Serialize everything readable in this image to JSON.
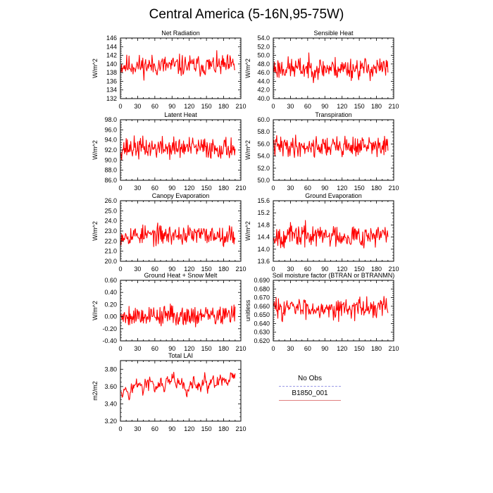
{
  "title": "Central America (5-16N,95-75W)",
  "legend": {
    "items": [
      {
        "label": "No Obs",
        "color": "#9a9ae6",
        "style": "dashed"
      },
      {
        "label": "B1850_001",
        "color": "#e08080",
        "style": "solid"
      }
    ]
  },
  "series_color": "#ff0000",
  "chart_data": [
    {
      "type": "line",
      "title": "Net Radiation",
      "ylabel": "W/m^2",
      "xlabel": "",
      "xlim": [
        0,
        210
      ],
      "xticks": [
        0,
        30,
        60,
        90,
        120,
        150,
        180,
        210
      ],
      "ylim": [
        132,
        146
      ],
      "yticks": [
        132,
        134,
        136,
        138,
        140,
        142,
        144,
        146
      ],
      "ydec": 0,
      "series": [
        {
          "name": "B1850_001",
          "mean": 139.6,
          "amp": 2.3,
          "seed": 11
        }
      ]
    },
    {
      "type": "line",
      "title": "Sensible Heat",
      "ylabel": "W/m^2",
      "xlabel": "",
      "xlim": [
        0,
        210
      ],
      "xticks": [
        0,
        30,
        60,
        90,
        120,
        150,
        180,
        210
      ],
      "ylim": [
        40,
        54
      ],
      "yticks": [
        40,
        42,
        44,
        46,
        48,
        50,
        52,
        54
      ],
      "ydec": 1,
      "series": [
        {
          "name": "B1850_001",
          "mean": 47.0,
          "amp": 2.4,
          "seed": 23
        }
      ]
    },
    {
      "type": "line",
      "title": "Latent Heat",
      "ylabel": "W/m^2",
      "xlabel": "",
      "xlim": [
        0,
        210
      ],
      "xticks": [
        0,
        30,
        60,
        90,
        120,
        150,
        180,
        210
      ],
      "ylim": [
        86,
        98
      ],
      "yticks": [
        86,
        88,
        90,
        92,
        94,
        96,
        98
      ],
      "ydec": 1,
      "series": [
        {
          "name": "B1850_001",
          "mean": 92.4,
          "amp": 2.0,
          "seed": 37
        }
      ]
    },
    {
      "type": "line",
      "title": "Transpiration",
      "ylabel": "W/m^2",
      "xlabel": "",
      "xlim": [
        0,
        210
      ],
      "xticks": [
        0,
        30,
        60,
        90,
        120,
        150,
        180,
        210
      ],
      "ylim": [
        50,
        60
      ],
      "yticks": [
        50,
        52,
        54,
        56,
        58,
        60
      ],
      "ydec": 1,
      "series": [
        {
          "name": "B1850_001",
          "mean": 55.6,
          "amp": 1.6,
          "seed": 41
        }
      ]
    },
    {
      "type": "line",
      "title": "Canopy Evaporation",
      "ylabel": "W/m^2",
      "xlabel": "",
      "xlim": [
        0,
        210
      ],
      "xticks": [
        0,
        30,
        60,
        90,
        120,
        150,
        180,
        210
      ],
      "ylim": [
        20,
        26
      ],
      "yticks": [
        20,
        21,
        22,
        23,
        24,
        25,
        26
      ],
      "ydec": 1,
      "series": [
        {
          "name": "B1850_001",
          "mean": 22.6,
          "amp": 0.9,
          "seed": 53
        }
      ]
    },
    {
      "type": "line",
      "title": "Ground Evaporation",
      "ylabel": "W/m^2",
      "xlabel": "",
      "xlim": [
        0,
        210
      ],
      "xticks": [
        0,
        30,
        60,
        90,
        120,
        150,
        180,
        210
      ],
      "ylim": [
        13.6,
        15.6
      ],
      "yticks": [
        13.6,
        14.0,
        14.4,
        14.8,
        15.2,
        15.6
      ],
      "ydec": 1,
      "series": [
        {
          "name": "B1850_001",
          "mean": 14.45,
          "amp": 0.35,
          "seed": 67
        }
      ]
    },
    {
      "type": "line",
      "title": "Ground Heat + Snow Melt",
      "ylabel": "W/m^2",
      "xlabel": "",
      "xlim": [
        0,
        210
      ],
      "xticks": [
        0,
        30,
        60,
        90,
        120,
        150,
        180,
        210
      ],
      "ylim": [
        -0.4,
        0.6
      ],
      "yticks": [
        -0.4,
        -0.2,
        0.0,
        0.2,
        0.4,
        0.6
      ],
      "ydec": 2,
      "series": [
        {
          "name": "B1850_001",
          "mean": 0.02,
          "amp": 0.16,
          "seed": 79
        }
      ]
    },
    {
      "type": "line",
      "title": "Soil moisture factor (BTRAN or BTRANMN)",
      "ylabel": "unitless",
      "xlabel": "",
      "xlim": [
        0,
        210
      ],
      "xticks": [
        0,
        30,
        60,
        90,
        120,
        150,
        180,
        210
      ],
      "ylim": [
        0.62,
        0.69
      ],
      "yticks": [
        0.62,
        0.63,
        0.64,
        0.65,
        0.66,
        0.67,
        0.68,
        0.69
      ],
      "ydec": 3,
      "series": [
        {
          "name": "B1850_001",
          "mean": 0.658,
          "amp": 0.011,
          "seed": 83
        }
      ]
    },
    {
      "type": "line",
      "title": "Total LAI",
      "ylabel": "m2/m2",
      "xlabel": "",
      "xlim": [
        0,
        210
      ],
      "xticks": [
        0,
        30,
        60,
        90,
        120,
        150,
        180,
        210
      ],
      "ylim": [
        3.2,
        3.9
      ],
      "yticks": [
        3.2,
        3.4,
        3.6,
        3.8
      ],
      "ydec": 2,
      "series": [
        {
          "name": "B1850_001",
          "mean": 3.6,
          "amp": 0.12,
          "seed": 97,
          "smooth": true
        }
      ]
    }
  ]
}
